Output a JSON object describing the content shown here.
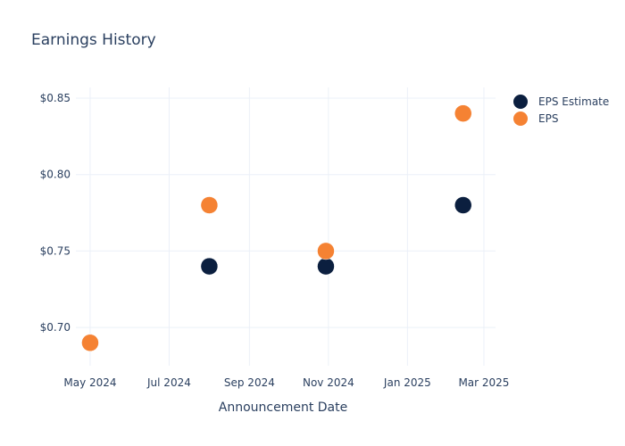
{
  "chart_data": {
    "type": "scatter",
    "title": "Earnings History",
    "xlabel": "Announcement Date",
    "ylabel": "",
    "x_ticks": [
      "2024-05-01",
      "2024-07-01",
      "2024-09-01",
      "2024-11-01",
      "2025-01-01",
      "2025-03-01"
    ],
    "x_tick_labels": [
      "May 2024",
      "Jul 2024",
      "Sep 2024",
      "Nov 2024",
      "Jan 2025",
      "Mar 2025"
    ],
    "xlim": [
      "2024-04-20",
      "2025-03-10"
    ],
    "y_ticks": [
      0.7,
      0.75,
      0.8,
      0.85
    ],
    "y_tick_labels": [
      "$0.70",
      "$0.75",
      "$0.80",
      "$0.85"
    ],
    "ylim": [
      0.675,
      0.857
    ],
    "grid": true,
    "legend_position": "top-right",
    "series": [
      {
        "name": "EPS Estimate",
        "color": "#0b1f3f",
        "points": [
          {
            "x": "2024-05-01",
            "y": 0.69
          },
          {
            "x": "2024-08-01",
            "y": 0.74
          },
          {
            "x": "2024-10-30",
            "y": 0.74
          },
          {
            "x": "2025-02-13",
            "y": 0.78
          }
        ]
      },
      {
        "name": "EPS",
        "color": "#f58233",
        "points": [
          {
            "x": "2024-05-01",
            "y": 0.69
          },
          {
            "x": "2024-08-01",
            "y": 0.78
          },
          {
            "x": "2024-10-30",
            "y": 0.75
          },
          {
            "x": "2025-02-13",
            "y": 0.84
          }
        ]
      }
    ]
  }
}
